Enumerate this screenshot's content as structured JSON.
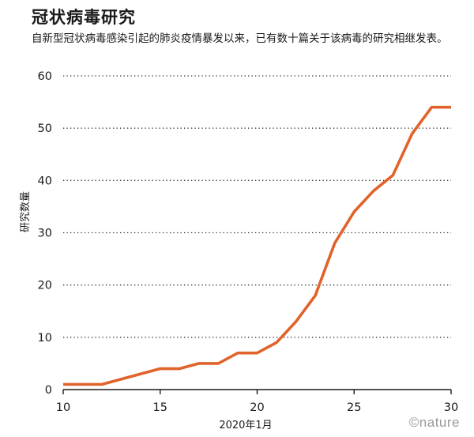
{
  "header": {
    "title": "冠状病毒研究",
    "subtitle": "自新型冠状病毒感染引起的肺炎疫情暴发以来，已有数十篇关于该病毒的研究相继发表。"
  },
  "watermark": "©nature",
  "colors": {
    "line": "#e0632b",
    "grid": "#333333",
    "axis": "#1a1a1a"
  },
  "chart_data": {
    "type": "line",
    "title": "冠状病毒研究",
    "xlabel": "2020年1月",
    "ylabel": "研究数量",
    "xlim": [
      10,
      30
    ],
    "ylim": [
      0,
      60
    ],
    "x_ticks": [
      10,
      15,
      20,
      25,
      30
    ],
    "y_ticks": [
      0,
      10,
      20,
      30,
      40,
      50,
      60
    ],
    "grid": "horizontal dotted",
    "series": [
      {
        "x": [
          10,
          11,
          12,
          13,
          14,
          15,
          16,
          17,
          18,
          19,
          20,
          21,
          22,
          23,
          24,
          25,
          26,
          27,
          28,
          29,
          30
        ],
        "values": [
          1,
          1,
          1,
          2,
          3,
          4,
          4,
          5,
          5,
          7,
          7,
          9,
          13,
          18,
          28,
          34,
          38,
          41,
          49,
          54,
          54
        ]
      }
    ]
  }
}
